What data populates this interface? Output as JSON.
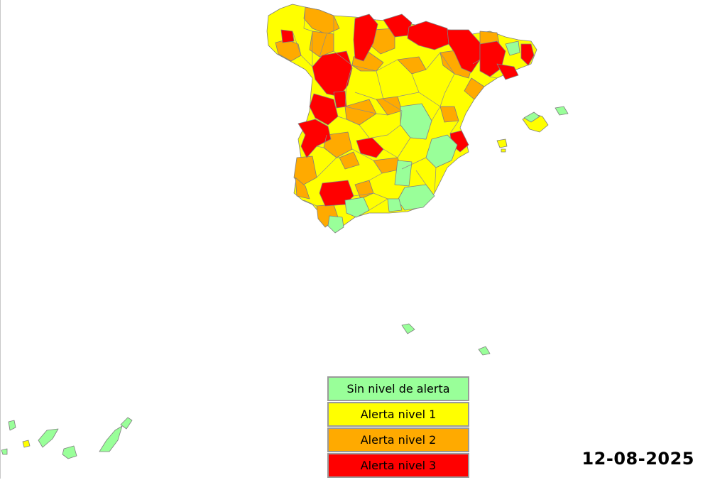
{
  "legend": [
    {
      "label": "Sin nivel de alerta",
      "color": "#99ff99"
    },
    {
      "label": "Alerta nivel 1",
      "color": "#ffff00"
    },
    {
      "label": "Alerta nivel 2",
      "color": "#ffaa00"
    },
    {
      "label": "Alerta nivel 3",
      "color": "#ff0000"
    }
  ],
  "date": "12-08-2025",
  "colors": {
    "border": "#7f7f7f",
    "background": "#ffffff"
  }
}
